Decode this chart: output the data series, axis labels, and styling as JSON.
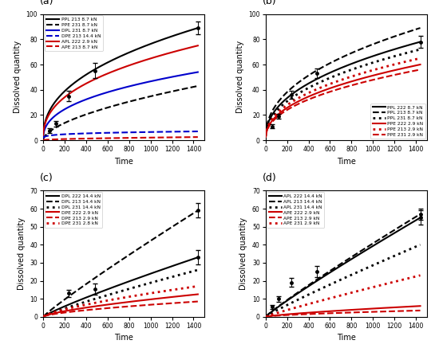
{
  "panel_labels": [
    "(a)",
    "(b)",
    "(c)",
    "(d)"
  ],
  "xlim": [
    0,
    1500
  ],
  "xlabel": "Time",
  "ylabel": "Dissolved quantity",
  "panel_a": {
    "ylim": [
      0,
      100
    ],
    "yticks": [
      0,
      20,
      40,
      60,
      80,
      100
    ],
    "xticks": [
      0,
      200,
      400,
      600,
      800,
      1000,
      1200,
      1400
    ],
    "series": [
      {
        "label": "PPL 213 8.7 kN",
        "color": "#000000",
        "ls": "-",
        "lw": 1.5,
        "end": 89.0,
        "power": 0.42
      },
      {
        "label": "PPE 231 8.7 kN",
        "color": "#000000",
        "ls": "--",
        "lw": 1.5,
        "end": 43.0,
        "power": 0.58
      },
      {
        "label": "DPL 231 8.7 kN",
        "color": "#0000cc",
        "ls": "-",
        "lw": 1.5,
        "end": 54.0,
        "power": 0.4
      },
      {
        "label": "DPE 213 14.4 kN",
        "color": "#0000cc",
        "ls": "--",
        "lw": 1.5,
        "end": 7.0,
        "power": 0.2
      },
      {
        "label": "APL 222 2.9 kN",
        "color": "#cc0000",
        "ls": "-",
        "lw": 1.5,
        "end": 75.0,
        "power": 0.4
      },
      {
        "label": "APE 213 8.7 kN",
        "color": "#cc0000",
        "ls": "--",
        "lw": 1.5,
        "end": 2.5,
        "power": 0.5
      }
    ],
    "errorbars": [
      {
        "x": [
          60,
          120,
          240,
          480
        ],
        "y": [
          7.5,
          13.0,
          35.0,
          55.0
        ],
        "yerr": [
          2.0,
          2.5,
          4.0,
          6.0
        ]
      },
      {
        "x": [
          1440
        ],
        "y": [
          89.0
        ],
        "yerr": [
          5.0
        ]
      }
    ],
    "legend_loc": "upper left",
    "legend_bbox": null
  },
  "panel_b": {
    "ylim": [
      0,
      100
    ],
    "yticks": [
      0,
      20,
      40,
      60,
      80,
      100
    ],
    "xticks": [
      0,
      200,
      400,
      600,
      800,
      1000,
      1200,
      1400
    ],
    "series": [
      {
        "label": "PPL 222 8.7 kN",
        "color": "#000000",
        "ls": "-",
        "lw": 1.5,
        "end": 78.0,
        "power": 0.43
      },
      {
        "label": "PPL 213 8.7 kN",
        "color": "#000000",
        "ls": "--",
        "lw": 1.5,
        "end": 89.0,
        "power": 0.43
      },
      {
        "label": "PPL 231 8.7 kN",
        "color": "#000000",
        "ls": ":",
        "lw": 2.0,
        "end": 72.0,
        "power": 0.43
      },
      {
        "label": "PPE 222 2.9 kN",
        "color": "#cc0000",
        "ls": "-",
        "lw": 1.5,
        "end": 60.0,
        "power": 0.43
      },
      {
        "label": "PPE 213 2.9 kN",
        "color": "#cc0000",
        "ls": ":",
        "lw": 2.0,
        "end": 65.0,
        "power": 0.43
      },
      {
        "label": "PPE 231 2.9 kN",
        "color": "#cc0000",
        "ls": "--",
        "lw": 1.5,
        "end": 56.0,
        "power": 0.43
      }
    ],
    "errorbars": [
      {
        "x": [
          60,
          120,
          240,
          480
        ],
        "y": [
          11.0,
          19.0,
          36.0,
          53.0
        ],
        "yerr": [
          1.5,
          2.0,
          3.0,
          4.0
        ]
      },
      {
        "x": [
          1440
        ],
        "y": [
          78.0
        ],
        "yerr": [
          5.0
        ]
      }
    ],
    "legend_loc": "lower right",
    "legend_bbox": null
  },
  "panel_c": {
    "ylim": [
      0,
      70
    ],
    "yticks": [
      0,
      10,
      20,
      30,
      40,
      50,
      60,
      70
    ],
    "xticks": [
      0,
      200,
      400,
      600,
      800,
      1000,
      1200,
      1400
    ],
    "series": [
      {
        "label": "DPL 222 14.4 kN",
        "color": "#000000",
        "ls": "-",
        "lw": 1.5,
        "end": 33.0,
        "power": 0.88
      },
      {
        "label": "DPL 213 14.4 kN",
        "color": "#000000",
        "ls": "--",
        "lw": 1.5,
        "end": 59.0,
        "power": 0.92
      },
      {
        "label": "DPL 231 14.4 kN",
        "color": "#000000",
        "ls": ":",
        "lw": 2.0,
        "end": 26.0,
        "power": 0.88
      },
      {
        "label": "DPE 222 2.9 kN",
        "color": "#cc0000",
        "ls": "-",
        "lw": 1.5,
        "end": 12.5,
        "power": 0.7
      },
      {
        "label": "DPE 213 2.9 kN",
        "color": "#cc0000",
        "ls": "--",
        "lw": 1.5,
        "end": 8.5,
        "power": 0.65
      },
      {
        "label": "DPE 231 2.8 kN",
        "color": "#cc0000",
        "ls": ":",
        "lw": 2.0,
        "end": 17.0,
        "power": 0.72
      }
    ],
    "errorbars": [
      {
        "x": [
          240,
          480
        ],
        "y": [
          13.0,
          15.5
        ],
        "yerr": [
          2.0,
          3.0
        ]
      },
      {
        "x": [
          1440
        ],
        "y": [
          33.0
        ],
        "yerr": [
          4.0
        ]
      },
      {
        "x": [
          1440
        ],
        "y": [
          59.0
        ],
        "yerr": [
          4.0
        ]
      }
    ],
    "legend_loc": "upper left",
    "legend_bbox": null
  },
  "panel_d": {
    "ylim": [
      0,
      70
    ],
    "yticks": [
      0,
      10,
      20,
      30,
      40,
      50,
      60,
      70
    ],
    "xticks": [
      0,
      200,
      400,
      600,
      800,
      1000,
      1200,
      1400
    ],
    "series": [
      {
        "label": "APL 222 14.4 kN",
        "color": "#000000",
        "ls": "-",
        "lw": 1.5,
        "end": 55.0,
        "power": 0.92
      },
      {
        "label": "APL 213 14.4 kN",
        "color": "#000000",
        "ls": "--",
        "lw": 1.5,
        "end": 57.0,
        "power": 0.92
      },
      {
        "label": "APL 231 14.4 kN",
        "color": "#000000",
        "ls": ":",
        "lw": 2.0,
        "end": 40.0,
        "power": 0.92
      },
      {
        "label": "APE 222 2.9 kN",
        "color": "#cc0000",
        "ls": "-",
        "lw": 1.5,
        "end": 6.0,
        "power": 0.75
      },
      {
        "label": "APE 213 2.9 kN",
        "color": "#cc0000",
        "ls": "--",
        "lw": 1.5,
        "end": 3.5,
        "power": 0.65
      },
      {
        "label": "APE 231 2.9 kN",
        "color": "#cc0000",
        "ls": ":",
        "lw": 2.0,
        "end": 23.0,
        "power": 0.92
      }
    ],
    "errorbars": [
      {
        "x": [
          60,
          120,
          240,
          480
        ],
        "y": [
          5.5,
          10.0,
          19.0,
          25.0
        ],
        "yerr": [
          1.0,
          1.5,
          2.5,
          3.0
        ]
      },
      {
        "x": [
          1440
        ],
        "y": [
          55.0
        ],
        "yerr": [
          4.0
        ]
      },
      {
        "x": [
          1440
        ],
        "y": [
          57.0
        ],
        "yerr": [
          3.0
        ]
      }
    ],
    "legend_loc": "upper left",
    "legend_bbox": null
  }
}
